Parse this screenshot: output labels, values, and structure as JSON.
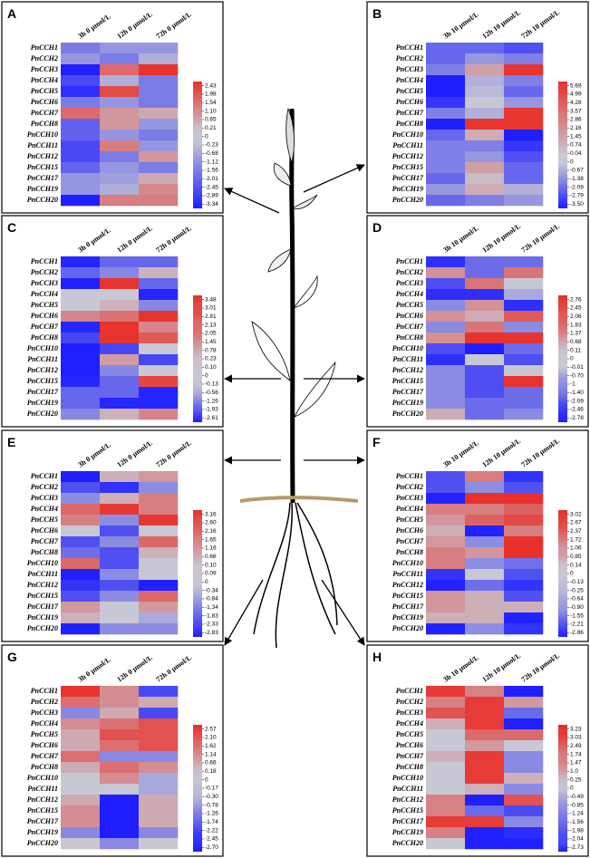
{
  "chart_data": [
    {
      "type": "heatmap",
      "title": "A",
      "columns": [
        "3h 0 μmol/L",
        "12h 0 μmol/L",
        "72h 0 μmol/L"
      ],
      "rows": [
        "PnCCH1",
        "PnCCH2",
        "PnCCH3",
        "PnCCH4",
        "PnCCH5",
        "PnCCH6",
        "PnCCH7",
        "PnCCH8",
        "PnCCH10",
        "PnCCH11",
        "PnCCH12",
        "PnCCH15",
        "PnCCH17",
        "PnCCH19",
        "PnCCH20"
      ],
      "values": [
        [
          -1.5,
          -1,
          -1
        ],
        [
          -1,
          -1.5,
          -0.5
        ],
        [
          -3.3,
          1.5,
          2.4
        ],
        [
          -2.5,
          -0.5,
          -1.5
        ],
        [
          -3,
          2,
          -1.5
        ],
        [
          -1.5,
          -1,
          -1.5
        ],
        [
          1.5,
          0.8,
          0.5
        ],
        [
          -2,
          0.8,
          -1
        ],
        [
          -2,
          -1,
          -1.5
        ],
        [
          -2.5,
          1.2,
          -1
        ],
        [
          -2.5,
          -1.5,
          0.8
        ],
        [
          -2,
          -1,
          -1.5
        ],
        [
          -1,
          -0.8,
          0.5
        ],
        [
          -1,
          -0.5,
          1
        ],
        [
          -3.3,
          1.2,
          1.2
        ]
      ],
      "cticks": [
        2.43,
        1.98,
        1.54,
        {
          "value": 1.1,
          "label": "1.10"
        },
        0.65,
        0.21,
        0,
        -0.23,
        -0.68,
        -1.12,
        -1.56,
        -2.01,
        -2.45,
        -2.89,
        -3.34
      ]
    },
    {
      "type": "heatmap",
      "title": "B",
      "columns": [
        "3h 10 μmol/L",
        "12h 10 μmol/L",
        "72h 10 μmol/L"
      ],
      "rows": [
        "PnCCH1",
        "PnCCH2",
        "PnCCH3",
        "PnCCH4",
        "PnCCH5",
        "PnCCH6",
        "PnCCH7",
        "PnCCH8",
        "PnCCH10",
        "PnCCH11",
        "PnCCH12",
        "PnCCH15",
        "PnCCH17",
        "PnCCH19",
        "PnCCH20"
      ],
      "values": [
        [
          -2,
          -2,
          -2.5
        ],
        [
          -2,
          -1,
          -1.5
        ],
        [
          -1.5,
          1.5,
          5.5
        ],
        [
          -3.5,
          -0.5,
          -1.5
        ],
        [
          -3.5,
          -0.3,
          -2
        ],
        [
          -3,
          0,
          -1
        ],
        [
          -1.5,
          -0.5,
          5.5
        ],
        [
          -3.5,
          5.5,
          5.5
        ],
        [
          -2,
          1,
          -3.5
        ],
        [
          -1.5,
          -1.5,
          -3
        ],
        [
          -1.5,
          -1,
          -2.5
        ],
        [
          -1.5,
          1.5,
          -2
        ],
        [
          -2,
          0.5,
          -2
        ],
        [
          -1,
          1,
          -0.5
        ],
        [
          -2,
          -1.5,
          -1
        ]
      ],
      "cticks": [
        5.69,
        4.99,
        4.28,
        3.57,
        2.86,
        2.16,
        1.45,
        0.74,
        0.04,
        0,
        -0.67,
        -1.38,
        -2.09,
        -2.79,
        {
          "value": -3.5,
          "label": "-3.50"
        }
      ]
    },
    {
      "type": "heatmap",
      "title": "C",
      "columns": [
        "3h 0 μmol/L",
        "12h 0 μmol/L",
        "72h 0 μmol/L"
      ],
      "rows": [
        "PnCCH1",
        "PnCCH2",
        "PnCCH3",
        "PnCCH4",
        "PnCCH5",
        "PnCCH6",
        "PnCCH7",
        "PnCCH8",
        "PnCCH10",
        "PnCCH11",
        "PnCCH12",
        "PnCCH15",
        "PnCCH17",
        "PnCCH19",
        "PnCCH20"
      ],
      "values": [
        [
          -2.5,
          -1.5,
          -1.5
        ],
        [
          -1.5,
          -1,
          0.5
        ],
        [
          -2.6,
          3.4,
          -1.5
        ],
        [
          0,
          0,
          -2.5
        ],
        [
          0,
          0.5,
          -1
        ],
        [
          1.5,
          2,
          3.4
        ],
        [
          -2.5,
          3.4,
          1.5
        ],
        [
          -2,
          3.4,
          2.5
        ],
        [
          -2.6,
          -2,
          0
        ],
        [
          -2.6,
          1,
          -2
        ],
        [
          -2.6,
          -1,
          0
        ],
        [
          -2.5,
          -1.5,
          3
        ],
        [
          -1.5,
          -1.5,
          -2.5
        ],
        [
          -1.5,
          -2.5,
          -2.5
        ],
        [
          -1,
          0.5,
          1.5
        ]
      ],
      "cticks": [
        3.48,
        3.01,
        2.81,
        2.13,
        2.05,
        1.45,
        0.78,
        0.23,
        {
          "value": 0.1,
          "label": "0.10"
        },
        0,
        -0.13,
        -0.56,
        -1.26,
        -1.93,
        -2.61
      ]
    },
    {
      "type": "heatmap",
      "title": "D",
      "columns": [
        "3h 10 μmol/L",
        "12h 10 μmol/L",
        "72h 10 μmol/L"
      ],
      "rows": [
        "PnCCH1",
        "PnCCH2",
        "PnCCH3",
        "PnCCH4",
        "PnCCH5",
        "PnCCH6",
        "PnCCH7",
        "PnCCH8",
        "PnCCH10",
        "PnCCH11",
        "PnCCH12",
        "PnCCH15",
        "PnCCH17",
        "PnCCH19",
        "PnCCH20"
      ],
      "values": [
        [
          -2.5,
          -1.5,
          -1.5
        ],
        [
          1,
          -1.5,
          1.5
        ],
        [
          -2,
          1.5,
          0
        ],
        [
          -2.5,
          -2.5,
          -0.5
        ],
        [
          -1,
          1,
          -2.5
        ],
        [
          1,
          0.5,
          2
        ],
        [
          -1,
          1.5,
          -1
        ],
        [
          1,
          2.7,
          2.7
        ],
        [
          -2,
          -2.8,
          -1.5
        ],
        [
          -2.5,
          0,
          -2
        ],
        [
          -1,
          -2,
          0
        ],
        [
          -1,
          -2,
          2.7
        ],
        [
          -1,
          -2,
          -1.5
        ],
        [
          -1,
          -1.5,
          -1.5
        ],
        [
          0.5,
          -1.5,
          -1
        ]
      ],
      "cticks": [
        2.76,
        2.45,
        2.06,
        1.83,
        1.37,
        0.68,
        0.11,
        0,
        -0.01,
        {
          "value": -0.7,
          "label": "-0.70"
        },
        -1,
        {
          "value": -1.4,
          "label": "-1.40"
        },
        -2.09,
        -2.46,
        -2.78
      ]
    },
    {
      "type": "heatmap",
      "title": "E",
      "columns": [
        "3h 0 μmol/L",
        "12h 0 μmol/L",
        "72h 0 μmol/L"
      ],
      "rows": [
        "PnCCH1",
        "PnCCH2",
        "PnCCH3",
        "PnCCH4",
        "PnCCH5",
        "PnCCH6",
        "PnCCH7",
        "PnCCH8",
        "PnCCH10",
        "PnCCH11",
        "PnCCH12",
        "PnCCH15",
        "PnCCH17",
        "PnCCH19",
        "PnCCH20"
      ],
      "values": [
        [
          -2.8,
          0.5,
          1
        ],
        [
          -2,
          -2.5,
          -1
        ],
        [
          -1,
          0.5,
          1.5
        ],
        [
          2,
          3,
          1.5
        ],
        [
          1.5,
          -1,
          3
        ],
        [
          0,
          -2,
          0
        ],
        [
          -2,
          -1,
          2
        ],
        [
          -1.5,
          -2,
          0.5
        ],
        [
          2,
          -2,
          0
        ],
        [
          -2.8,
          -1,
          0
        ],
        [
          -2.5,
          -2,
          -2.8
        ],
        [
          -2,
          -1,
          2
        ],
        [
          1,
          0,
          1
        ],
        [
          0.5,
          0,
          -0.5
        ],
        [
          -2.8,
          -1,
          -1
        ]
      ],
      "cticks": [
        3.16,
        {
          "value": 2.6,
          "label": "2.60"
        },
        2.16,
        1.65,
        1.16,
        0.66,
        {
          "value": 0.1,
          "label": "0.10"
        },
        0.09,
        0,
        -0.34,
        -0.84,
        -1.34,
        -1.83,
        -2.33,
        -2.83
      ]
    },
    {
      "type": "heatmap",
      "title": "F",
      "columns": [
        "3h 10 μmol/L",
        "12h 10 μmol/L",
        "72h 10 μmol/L"
      ],
      "rows": [
        "PnCCH1",
        "PnCCH2",
        "PnCCH3",
        "PnCCH4",
        "PnCCH5",
        "PnCCH6",
        "PnCCH7",
        "PnCCH8",
        "PnCCH10",
        "PnCCH11",
        "PnCCH12",
        "PnCCH15",
        "PnCCH17",
        "PnCCH19",
        "PnCCH20"
      ],
      "values": [
        [
          -2,
          1.5,
          -2.5
        ],
        [
          -2,
          -1,
          -2
        ],
        [
          -2.8,
          3,
          3
        ],
        [
          1.5,
          1.5,
          2
        ],
        [
          1,
          2,
          2.5
        ],
        [
          0.5,
          -2.8,
          1.5
        ],
        [
          1,
          -1,
          3
        ],
        [
          1.5,
          1,
          3
        ],
        [
          1.5,
          -1,
          -1.5
        ],
        [
          -2.5,
          0,
          -2
        ],
        [
          -2.8,
          -1.5,
          -2.5
        ],
        [
          1,
          0.5,
          -2
        ],
        [
          1,
          0.5,
          0.5
        ],
        [
          0.5,
          0.5,
          -2.8
        ],
        [
          -2.8,
          -1,
          -2.5
        ]
      ],
      "cticks": [
        3.02,
        2.67,
        2.37,
        1.72,
        1.06,
        0.85,
        0.14,
        0,
        -0.13,
        -0.25,
        -0.64,
        {
          "value": -0.9,
          "label": "-0.90"
        },
        -1.55,
        -2.21,
        -2.86
      ]
    },
    {
      "type": "heatmap",
      "title": "G",
      "columns": [
        "3h 0 μmol/L",
        "12h 0 μmol/L",
        "72h 0 μmol/L"
      ],
      "rows": [
        "PnCCH1",
        "PnCCH2",
        "PnCCH3",
        "PnCCH4",
        "PnCCH5",
        "PnCCH6",
        "PnCCH7",
        "PnCCH8",
        "PnCCH10",
        "PnCCH11",
        "PnCCH12",
        "PnCCH15",
        "PnCCH17",
        "PnCCH19",
        "PnCCH20"
      ],
      "values": [
        [
          2.5,
          1,
          -2
        ],
        [
          1.5,
          1,
          0.5
        ],
        [
          -1,
          0.5,
          -2
        ],
        [
          1,
          1.5,
          2
        ],
        [
          0.5,
          2,
          2
        ],
        [
          0.5,
          1.5,
          2
        ],
        [
          1.5,
          -1,
          -1
        ],
        [
          0.5,
          1.5,
          1
        ],
        [
          0,
          1,
          -0.5
        ],
        [
          0,
          0,
          -0.5
        ],
        [
          0.5,
          -2.7,
          0.5
        ],
        [
          1,
          -2.7,
          0.5
        ],
        [
          1,
          -2.7,
          0.5
        ],
        [
          -1,
          -2.7,
          -1
        ],
        [
          0,
          -1,
          0
        ]
      ],
      "cticks": [
        2.57,
        {
          "value": 2.1,
          "label": "2.10"
        },
        1.62,
        1.14,
        0.66,
        0.18,
        0,
        -0.17,
        {
          "value": -0.3,
          "label": "-0.30"
        },
        -0.78,
        -1.26,
        -1.74,
        -2.22,
        -2.45,
        {
          "value": -2.7,
          "label": "-2.70"
        }
      ]
    },
    {
      "type": "heatmap",
      "title": "H",
      "columns": [
        "3h 10 μmol/L",
        "12h 10 μmol/L",
        "72h 10 μmol/L"
      ],
      "rows": [
        "PnCCH1",
        "PnCCH2",
        "PnCCH3",
        "PnCCH4",
        "PnCCH5",
        "PnCCH6",
        "PnCCH7",
        "PnCCH8",
        "PnCCH10",
        "PnCCH11",
        "PnCCH12",
        "PnCCH15",
        "PnCCH17",
        "PnCCH19",
        "PnCCH20"
      ],
      "values": [
        [
          3,
          1.5,
          -2.7
        ],
        [
          1.5,
          3,
          1
        ],
        [
          2.5,
          3,
          -1.5
        ],
        [
          0.5,
          3,
          -2.7
        ],
        [
          0,
          2,
          2
        ],
        [
          0,
          1,
          0
        ],
        [
          0.5,
          3,
          -1
        ],
        [
          0,
          3,
          -1
        ],
        [
          0,
          3,
          0.5
        ],
        [
          0,
          0.5,
          -1
        ],
        [
          1.5,
          -2.7,
          2.5
        ],
        [
          1.5,
          -1.5,
          -2
        ],
        [
          3,
          3,
          -1
        ],
        [
          1.5,
          -2.7,
          -2.5
        ],
        [
          0,
          -2.7,
          -2.7
        ]
      ],
      "cticks": [
        3.23,
        3.03,
        2.49,
        1.74,
        1.47,
        {
          "value": 1,
          "label": "1.0"
        },
        0.25,
        0,
        -0.49,
        -0.85,
        -1.24,
        -1.56,
        -1.98,
        -2.04,
        -2.73
      ]
    }
  ]
}
